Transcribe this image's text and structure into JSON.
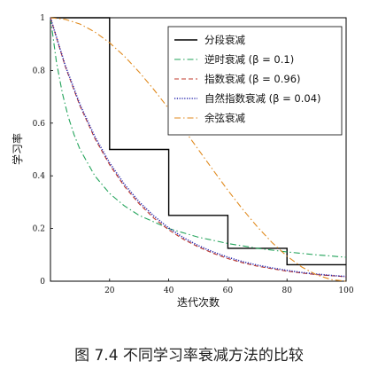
{
  "caption": "图 7.4   不同学习率衰减方法的比较",
  "colors": {
    "piecewise": "#000000",
    "inverse": "#22a35a",
    "exponential": "#c0392b",
    "natural": "#2b2bb0",
    "cosine": "#e08a1e"
  },
  "chart_data": {
    "type": "line",
    "xlabel": "迭代次数",
    "ylabel": "学习率",
    "xlim": [
      0,
      100
    ],
    "ylim": [
      0,
      1
    ],
    "xticks": [
      20,
      40,
      60,
      80,
      100
    ],
    "yticks": [
      0,
      0.2,
      0.4,
      0.6,
      0.8,
      1
    ],
    "xtick_labels": [
      "20",
      "40",
      "60",
      "80",
      "100"
    ],
    "ytick_labels": [
      "0",
      "0.2",
      "0.4",
      "0.6",
      "0.8",
      "1"
    ],
    "grid": false,
    "legend_position": "top-right",
    "series": [
      {
        "name": "分段衰减",
        "style": "solid",
        "color": "#000000",
        "x": [
          0,
          20,
          20,
          40,
          40,
          60,
          60,
          80,
          80,
          100
        ],
        "y": [
          1,
          1,
          0.5,
          0.5,
          0.25,
          0.25,
          0.125,
          0.125,
          0.0625,
          0.0625
        ]
      },
      {
        "name": "逆时衰减 (β = 0.1)",
        "style": "dashdot",
        "color": "#22a35a",
        "x": [
          0,
          2,
          4,
          6,
          8,
          10,
          15,
          20,
          25,
          30,
          40,
          50,
          60,
          70,
          80,
          90,
          100
        ],
        "y": [
          1,
          0.833,
          0.714,
          0.625,
          0.556,
          0.5,
          0.4,
          0.333,
          0.286,
          0.25,
          0.2,
          0.167,
          0.143,
          0.125,
          0.111,
          0.1,
          0.091
        ]
      },
      {
        "name": "指数衰减 (β = 0.96)",
        "style": "dashed",
        "color": "#c0392b",
        "x": [
          0,
          5,
          10,
          15,
          20,
          25,
          30,
          35,
          40,
          45,
          50,
          55,
          60,
          65,
          70,
          75,
          80,
          85,
          90,
          95,
          100
        ],
        "y": [
          1,
          0.815,
          0.665,
          0.542,
          0.442,
          0.36,
          0.294,
          0.239,
          0.195,
          0.159,
          0.13,
          0.106,
          0.086,
          0.07,
          0.057,
          0.047,
          0.038,
          0.031,
          0.025,
          0.021,
          0.017
        ]
      },
      {
        "name": "自然指数衰减 (β = 0.04)",
        "style": "dotted",
        "color": "#2b2bb0",
        "x": [
          0,
          5,
          10,
          15,
          20,
          25,
          30,
          35,
          40,
          45,
          50,
          55,
          60,
          65,
          70,
          75,
          80,
          85,
          90,
          95,
          100
        ],
        "y": [
          1,
          0.819,
          0.67,
          0.549,
          0.449,
          0.368,
          0.301,
          0.247,
          0.202,
          0.165,
          0.135,
          0.111,
          0.091,
          0.074,
          0.061,
          0.05,
          0.041,
          0.033,
          0.027,
          0.022,
          0.018
        ]
      },
      {
        "name": "余弦衰减",
        "style": "dashdot",
        "color": "#e08a1e",
        "x": [
          0,
          5,
          10,
          15,
          20,
          25,
          30,
          35,
          40,
          45,
          50,
          55,
          60,
          65,
          70,
          75,
          80,
          85,
          90,
          95,
          100
        ],
        "y": [
          1,
          0.994,
          0.976,
          0.946,
          0.905,
          0.854,
          0.794,
          0.727,
          0.655,
          0.578,
          0.5,
          0.422,
          0.345,
          0.273,
          0.206,
          0.146,
          0.095,
          0.054,
          0.024,
          0.006,
          0
        ]
      }
    ]
  }
}
